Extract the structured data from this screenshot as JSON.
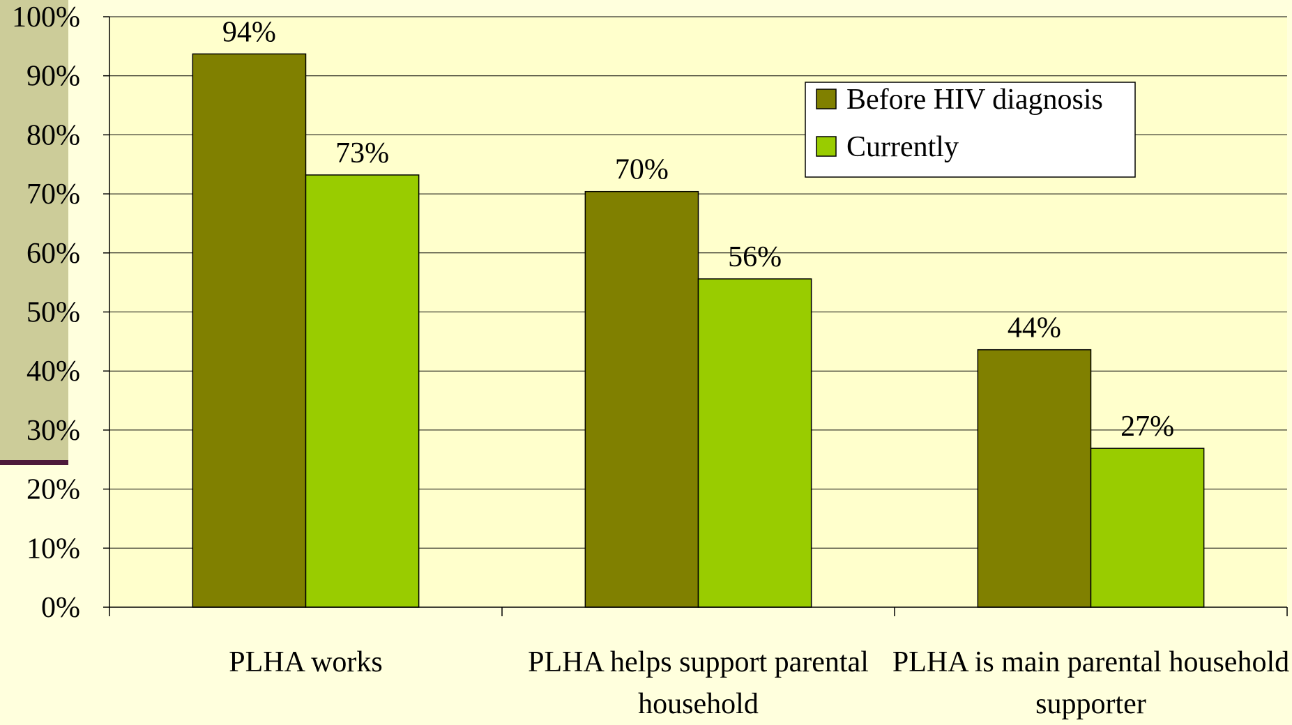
{
  "chart_data": {
    "type": "bar",
    "categories": [
      "PLHA works",
      "PLHA helps support parental household",
      "PLHA is main parental household supporter"
    ],
    "series": [
      {
        "name": "Before HIV diagnosis",
        "color": "#808000",
        "values": [
          93.7,
          70.4,
          43.6
        ],
        "value_labels": [
          "94%",
          "70%",
          "44%"
        ]
      },
      {
        "name": "Currently",
        "color": "#99cc00",
        "values": [
          73.2,
          55.6,
          26.9
        ],
        "value_labels": [
          "73%",
          "56%",
          "27%"
        ]
      }
    ],
    "ylim": [
      0,
      100
    ],
    "yticks": [
      {
        "value": 0,
        "label": "0%"
      },
      {
        "value": 10,
        "label": "10%"
      },
      {
        "value": 20,
        "label": "20%"
      },
      {
        "value": 30,
        "label": "30%"
      },
      {
        "value": 40,
        "label": "40%"
      },
      {
        "value": 50,
        "label": "50%"
      },
      {
        "value": 60,
        "label": "60%"
      },
      {
        "value": 70,
        "label": "70%"
      },
      {
        "value": 80,
        "label": "80%"
      },
      {
        "value": 90,
        "label": "90%"
      },
      {
        "value": 100,
        "label": "100%"
      }
    ],
    "grid": true,
    "legend": "upper right"
  }
}
